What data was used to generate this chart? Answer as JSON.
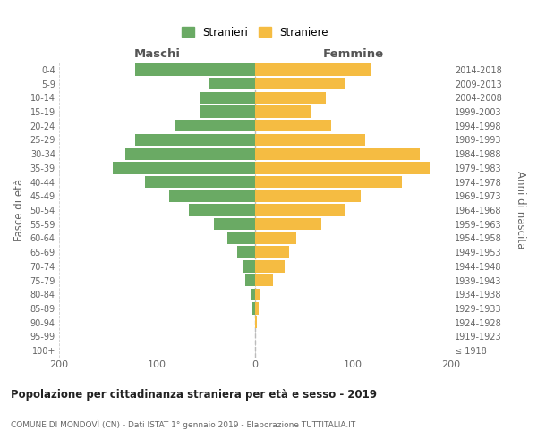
{
  "age_groups": [
    "100+",
    "95-99",
    "90-94",
    "85-89",
    "80-84",
    "75-79",
    "70-74",
    "65-69",
    "60-64",
    "55-59",
    "50-54",
    "45-49",
    "40-44",
    "35-39",
    "30-34",
    "25-29",
    "20-24",
    "15-19",
    "10-14",
    "5-9",
    "0-4"
  ],
  "birth_years": [
    "≤ 1918",
    "1919-1923",
    "1924-1928",
    "1929-1933",
    "1934-1938",
    "1939-1943",
    "1944-1948",
    "1949-1953",
    "1954-1958",
    "1959-1963",
    "1964-1968",
    "1969-1973",
    "1974-1978",
    "1979-1983",
    "1984-1988",
    "1989-1993",
    "1994-1998",
    "1999-2003",
    "2004-2008",
    "2009-2013",
    "2014-2018"
  ],
  "maschi": [
    0,
    0,
    0,
    3,
    5,
    10,
    13,
    18,
    28,
    42,
    68,
    88,
    112,
    145,
    132,
    122,
    82,
    57,
    57,
    47,
    122
  ],
  "femmine": [
    0,
    0,
    2,
    4,
    5,
    18,
    30,
    35,
    42,
    68,
    92,
    108,
    150,
    178,
    168,
    112,
    78,
    57,
    72,
    92,
    118
  ],
  "maschi_color": "#6aaa64",
  "femmine_color": "#f5bc42",
  "title": "Popolazione per cittadinanza straniera per età e sesso - 2019",
  "subtitle": "COMUNE DI MONDOVÌ (CN) - Dati ISTAT 1° gennaio 2019 - Elaborazione TUTTITALIA.IT",
  "ylabel_left": "Fasce di età",
  "ylabel_right": "Anni di nascita",
  "xlabel_left": "Maschi",
  "xlabel_right": "Femmine",
  "legend_maschi": "Stranieri",
  "legend_femmine": "Straniere",
  "xlim": 200,
  "bar_height": 0.85
}
